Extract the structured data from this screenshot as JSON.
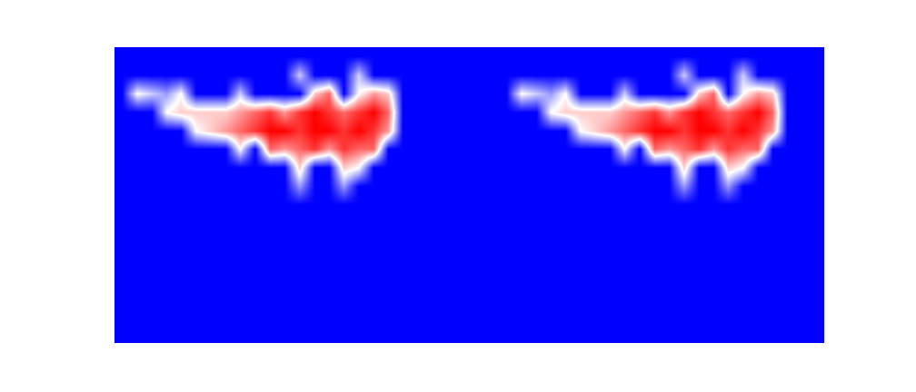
{
  "chart_data": {
    "type": "heatmap",
    "tick_labels": false,
    "grid": false,
    "zlim": [
      0,
      1
    ],
    "cells": [
      [
        0,
        0,
        0,
        0,
        0,
        0,
        0,
        0,
        0,
        0,
        0,
        0,
        0,
        0,
        0,
        0,
        0,
        0,
        0,
        0,
        0,
        0,
        0,
        0,
        0,
        0,
        0,
        0,
        0,
        0,
        0,
        0,
        0,
        0,
        0,
        0,
        0,
        0,
        0,
        0,
        0,
        0,
        0,
        0,
        0,
        0,
        0,
        0
      ],
      [
        0,
        0,
        0,
        0,
        0,
        0,
        0,
        0,
        0,
        0,
        0,
        0,
        0.4,
        0,
        0,
        0,
        0.4,
        0,
        0,
        0,
        0,
        0,
        0,
        0,
        0,
        0,
        0,
        0,
        0,
        0,
        0,
        0,
        0,
        0,
        0,
        0,
        0,
        0,
        0.4,
        0,
        0,
        0,
        0.4,
        0,
        0,
        0,
        0,
        0
      ],
      [
        0,
        0.5,
        0.4,
        0.3,
        0.5,
        0,
        0,
        0,
        0.4,
        0,
        0,
        0,
        0,
        0.6,
        0.8,
        0,
        0.5,
        0.7,
        0.6,
        0,
        0,
        0,
        0,
        0,
        0,
        0,
        0,
        0.5,
        0.4,
        0.3,
        0.5,
        0,
        0,
        0,
        0.4,
        0,
        0,
        0,
        0,
        0.6,
        0.8,
        0,
        0.5,
        0.7,
        0.6,
        0,
        0,
        0
      ],
      [
        0,
        0,
        0,
        0.5,
        0.6,
        0.6,
        0.6,
        0.6,
        0.7,
        0.8,
        0.9,
        0.7,
        0.9,
        1,
        0.9,
        0.8,
        0.9,
        1,
        0.8,
        0,
        0,
        0,
        0,
        0,
        0,
        0,
        0,
        0,
        0,
        0.5,
        0.6,
        0.6,
        0.6,
        0.6,
        0.7,
        0.8,
        0.9,
        0.7,
        0.9,
        1,
        0.9,
        0.8,
        0.9,
        1,
        0.8,
        0,
        0,
        0
      ],
      [
        0,
        0,
        0,
        0,
        0,
        0.5,
        0.6,
        0.7,
        0.8,
        0.9,
        1,
        1,
        0.9,
        1,
        1,
        0.9,
        1,
        0.9,
        0.7,
        0,
        0,
        0,
        0,
        0,
        0,
        0,
        0,
        0,
        0,
        0,
        0,
        0.5,
        0.6,
        0.7,
        0.8,
        0.9,
        1,
        1,
        0.9,
        1,
        1,
        0.9,
        1,
        0.9,
        0.7,
        0,
        0,
        0
      ],
      [
        0,
        0,
        0,
        0,
        0,
        0,
        0,
        0,
        0.5,
        0,
        0.8,
        0.7,
        0.8,
        0.9,
        0.7,
        0.9,
        0.8,
        0.8,
        0,
        0,
        0,
        0,
        0,
        0,
        0,
        0,
        0,
        0,
        0,
        0,
        0,
        0,
        0,
        0,
        0.5,
        0,
        0.8,
        0.7,
        0.8,
        0.9,
        0.7,
        0.9,
        0.8,
        0.8,
        0,
        0,
        0,
        0
      ],
      [
        0,
        0,
        0,
        0,
        0,
        0,
        0,
        0,
        0,
        0,
        0,
        0,
        0.6,
        0,
        0,
        0.6,
        0.5,
        0,
        0,
        0,
        0,
        0,
        0,
        0,
        0,
        0,
        0,
        0,
        0,
        0,
        0,
        0,
        0,
        0,
        0,
        0,
        0,
        0,
        0.6,
        0,
        0,
        0.6,
        0.5,
        0,
        0,
        0,
        0,
        0
      ],
      [
        0,
        0,
        0,
        0,
        0,
        0,
        0,
        0,
        0,
        0,
        0,
        0,
        0.3,
        0,
        0,
        0.3,
        0,
        0,
        0,
        0,
        0,
        0,
        0,
        0,
        0,
        0,
        0,
        0,
        0,
        0,
        0,
        0,
        0,
        0,
        0,
        0,
        0,
        0,
        0.3,
        0,
        0,
        0.3,
        0,
        0,
        0,
        0,
        0,
        0
      ],
      [
        0,
        0,
        0,
        0,
        0,
        0,
        0,
        0,
        0,
        0,
        0,
        0,
        0,
        0,
        0,
        0,
        0,
        0,
        0,
        0,
        0,
        0,
        0,
        0,
        0,
        0,
        0,
        0,
        0,
        0,
        0,
        0,
        0,
        0,
        0,
        0,
        0,
        0,
        0,
        0,
        0,
        0,
        0,
        0,
        0,
        0,
        0,
        0
      ],
      [
        0,
        0,
        0,
        0,
        0,
        0,
        0,
        0,
        0,
        0,
        0,
        0,
        0,
        0,
        0,
        0,
        0,
        0,
        0,
        0,
        0,
        0,
        0,
        0,
        0,
        0,
        0,
        0,
        0,
        0,
        0,
        0,
        0,
        0,
        0,
        0,
        0,
        0,
        0,
        0,
        0,
        0,
        0,
        0,
        0,
        0,
        0,
        0
      ],
      [
        0,
        0,
        0,
        0,
        0,
        0,
        0,
        0,
        0,
        0,
        0,
        0,
        0,
        0,
        0,
        0,
        0,
        0,
        0,
        0,
        0,
        0,
        0,
        0,
        0,
        0,
        0,
        0,
        0,
        0,
        0,
        0,
        0,
        0,
        0,
        0,
        0,
        0,
        0,
        0,
        0,
        0,
        0,
        0,
        0,
        0,
        0,
        0
      ],
      [
        0,
        0,
        0,
        0,
        0,
        0,
        0,
        0,
        0,
        0,
        0,
        0,
        0,
        0,
        0,
        0,
        0,
        0,
        0,
        0,
        0,
        0,
        0,
        0,
        0,
        0,
        0,
        0,
        0,
        0,
        0,
        0,
        0,
        0,
        0,
        0,
        0,
        0,
        0,
        0,
        0,
        0,
        0,
        0,
        0,
        0,
        0,
        0
      ],
      [
        0,
        0,
        0,
        0,
        0,
        0,
        0,
        0,
        0,
        0,
        0,
        0,
        0,
        0,
        0,
        0,
        0,
        0,
        0,
        0,
        0,
        0,
        0,
        0,
        0,
        0,
        0,
        0,
        0,
        0,
        0,
        0,
        0,
        0,
        0,
        0,
        0,
        0,
        0,
        0,
        0,
        0,
        0,
        0,
        0,
        0,
        0,
        0
      ],
      [
        0,
        0,
        0,
        0,
        0,
        0,
        0,
        0,
        0,
        0,
        0,
        0,
        0,
        0,
        0,
        0,
        0,
        0,
        0,
        0,
        0,
        0,
        0,
        0,
        0,
        0,
        0,
        0,
        0,
        0,
        0,
        0,
        0,
        0,
        0,
        0,
        0,
        0,
        0,
        0,
        0,
        0,
        0,
        0,
        0,
        0,
        0,
        0
      ],
      [
        0,
        0,
        0,
        0,
        0,
        0,
        0,
        0,
        0,
        0,
        0,
        0,
        0,
        0,
        0,
        0,
        0,
        0,
        0,
        0,
        0,
        0,
        0,
        0,
        0,
        0,
        0,
        0,
        0,
        0,
        0,
        0,
        0,
        0,
        0,
        0,
        0,
        0,
        0,
        0,
        0,
        0,
        0,
        0,
        0,
        0,
        0,
        0
      ],
      [
        0,
        0,
        0,
        0,
        0,
        0,
        0,
        0,
        0,
        0,
        0,
        0,
        0,
        0,
        0,
        0,
        0,
        0,
        0,
        0,
        0,
        0,
        0,
        0,
        0,
        0,
        0,
        0,
        0,
        0,
        0,
        0,
        0,
        0,
        0,
        0,
        0,
        0,
        0,
        0,
        0,
        0,
        0,
        0,
        0,
        0,
        0,
        0
      ]
    ]
  }
}
